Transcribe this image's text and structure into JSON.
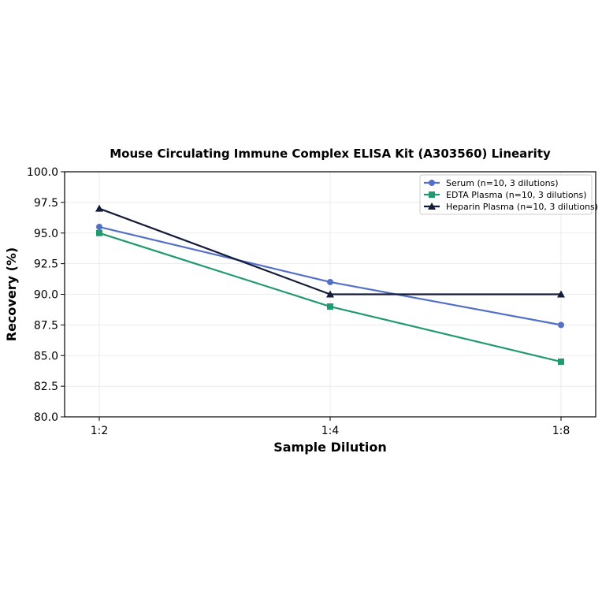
{
  "chart_data": {
    "type": "line",
    "title": "Mouse Circulating Immune Complex ELISA Kit (A303560) Linearity",
    "xlabel": "Sample Dilution",
    "ylabel": "Recovery (%)",
    "categories": [
      "1:2",
      "1:4",
      "1:8"
    ],
    "ylim": [
      80.0,
      100.0
    ],
    "yticks": [
      "80.0",
      "82.5",
      "85.0",
      "87.5",
      "90.0",
      "92.5",
      "95.0",
      "97.5",
      "100.0"
    ],
    "grid": true,
    "legend_position": "top-right",
    "series": [
      {
        "name": "Serum (n=10, 3 dilutions)",
        "values": [
          95.5,
          91.0,
          87.5
        ],
        "color": "#5470c6",
        "marker": "circle"
      },
      {
        "name": "EDTA Plasma (n=10, 3 dilutions)",
        "values": [
          95.0,
          89.0,
          84.5
        ],
        "color": "#22996e",
        "marker": "square"
      },
      {
        "name": "Heparin Plasma (n=10, 3 dilutions)",
        "values": [
          97.0,
          90.0,
          90.0
        ],
        "color": "#141c3a",
        "marker": "triangle"
      }
    ]
  }
}
